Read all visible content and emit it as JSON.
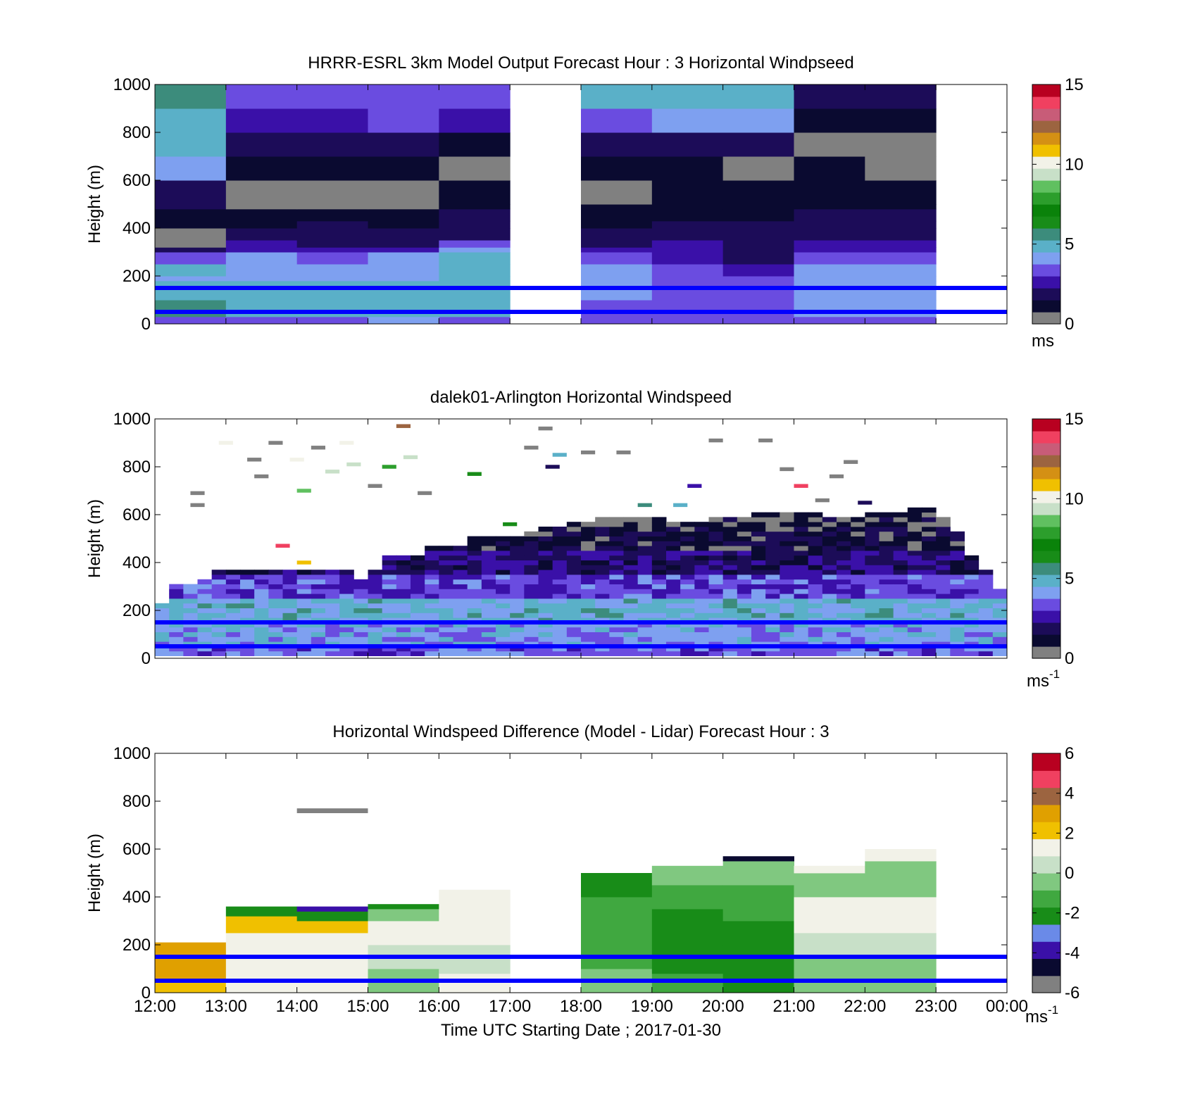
{
  "colors": {
    "ref_line": "#0000ff",
    "grey": "#808080",
    "speed_palette": [
      "#808080",
      "#0a0a30",
      "#1c0c58",
      "#3a10a8",
      "#6a4ce0",
      "#7ea0f0",
      "#5ab0c8",
      "#3c8c7c",
      "#188c18",
      "#0a820a",
      "#2c9e2c",
      "#60c060",
      "#c8e0c8",
      "#f2f2e8",
      "#f0c000",
      "#d49014",
      "#9c6440",
      "#c85c78",
      "#f04060",
      "#b80020"
    ],
    "diff_palette": [
      "#808080",
      "#0a0a30",
      "#3a10a8",
      "#6a8ae8",
      "#188c18",
      "#40a840",
      "#80c880",
      "#c8e0c8",
      "#f2f2e8",
      "#f0c000",
      "#e0a000",
      "#9c6440",
      "#f04060",
      "#b80020"
    ]
  },
  "chart_data": [
    {
      "type": "heatmap",
      "title": "HRRR-ESRL 3km Model Output   Forecast Hour : 3 Horizontal Windpseed",
      "ylabel": "Height (m)",
      "ylim": [
        0,
        1000
      ],
      "yticks": [
        "0",
        "200",
        "400",
        "600",
        "800",
        "1000"
      ],
      "xlim_hours": [
        12,
        24
      ],
      "ref_lines_m": [
        50,
        150
      ],
      "colorbar": {
        "min": 0,
        "max": 15,
        "ticks": [
          "0",
          "5",
          "10",
          "15"
        ],
        "unit": "ms"
      },
      "x_hours": [
        12,
        13,
        14,
        15,
        16,
        18,
        19,
        20,
        21,
        22
      ],
      "y_bin_top_m": [
        30,
        60,
        100,
        130,
        180,
        200,
        250,
        300,
        320,
        350,
        400,
        430,
        480,
        500,
        600,
        700,
        800,
        900,
        1000
      ],
      "values": [
        [
          3.3,
          3.7,
          3.5,
          3.8,
          3.6,
          3.7,
          3.3,
          3.2,
          3.7,
          3.6
        ],
        [
          5.4,
          4.8,
          5.0,
          4.9,
          5.2,
          3.3,
          3.5,
          3.3,
          4.0,
          4.3
        ],
        [
          5.8,
          5.0,
          4.8,
          5.0,
          5.2,
          3.4,
          3.7,
          3.6,
          3.9,
          4.2
        ],
        [
          5.2,
          5.0,
          5.0,
          5.0,
          5.2,
          3.8,
          3.5,
          3.6,
          3.9,
          4.2
        ],
        [
          4.8,
          5.0,
          5.0,
          5.0,
          5.2,
          3.8,
          3.5,
          3.5,
          3.9,
          4.2
        ],
        [
          4.4,
          4.4,
          4.4,
          4.3,
          5.0,
          3.9,
          3.3,
          3.1,
          3.8,
          4.3
        ],
        [
          4.5,
          4.3,
          4.2,
          4.4,
          4.8,
          4.0,
          3.2,
          2.8,
          3.8,
          4.3
        ],
        [
          3.1,
          4.0,
          3.3,
          4.0,
          4.6,
          3.0,
          2.7,
          2.2,
          3.2,
          3.7
        ],
        [
          1.6,
          2.7,
          2.5,
          2.4,
          4.3,
          2.8,
          2.6,
          2.2,
          2.6,
          2.8
        ],
        [
          0.5,
          2.3,
          2.2,
          2.0,
          3.7,
          2.2,
          2.4,
          1.8,
          2.3,
          2.4
        ],
        [
          0.0,
          2.0,
          1.8,
          1.8,
          2.2,
          2.0,
          2.0,
          1.8,
          2.0,
          2.0
        ],
        [
          1.3,
          1.4,
          1.6,
          1.2,
          1.8,
          1.4,
          1.5,
          1.5,
          1.6,
          1.6
        ],
        [
          1.4,
          1.0,
          1.0,
          0.9,
          1.5,
          1.1,
          1.3,
          1.3,
          1.6,
          1.6
        ],
        [
          1.6,
          0.5,
          0.6,
          0.5,
          1.4,
          1.0,
          1.2,
          1.1,
          1.4,
          1.2
        ],
        [
          1.8,
          0.7,
          0.7,
          0.4,
          1.1,
          0.7,
          0.8,
          0.8,
          1.0,
          1.1
        ],
        [
          4.0,
          0.9,
          0.9,
          1.0,
          0.6,
          0.8,
          0.8,
          0.6,
          0.8,
          0.6
        ],
        [
          5.0,
          1.9,
          1.8,
          1.9,
          1.4,
          1.9,
          1.9,
          1.9,
          0.6,
          0.5
        ],
        [
          5.2,
          2.8,
          2.8,
          3.5,
          2.6,
          3.5,
          3.8,
          4.2,
          1.0,
          0.9
        ],
        [
          5.6,
          3.6,
          3.4,
          3.6,
          3.2,
          4.6,
          5.0,
          5.0,
          2.1,
          2.1
        ]
      ]
    },
    {
      "type": "heatmap",
      "title": "dalek01-Arlington  Horizontal Windspeed",
      "ylabel": "Height (m)",
      "ylim": [
        0,
        1000
      ],
      "yticks": [
        "0",
        "200",
        "400",
        "600",
        "800",
        "1000"
      ],
      "xlim_hours": [
        12,
        24
      ],
      "ref_lines_m": [
        50,
        150
      ],
      "colorbar": {
        "min": 0,
        "max": 15,
        "ticks": [
          "0",
          "5",
          "10",
          "15"
        ],
        "unit": "ms",
        "unit_sup": "-1"
      },
      "profile_step_hours": 0.2,
      "profile_top_m": [
        220,
        300,
        300,
        330,
        370,
        360,
        360,
        360,
        370,
        360,
        360,
        360,
        370,
        370,
        330,
        360,
        420,
        430,
        430,
        460,
        460,
        470,
        500,
        500,
        500,
        510,
        520,
        540,
        550,
        560,
        570,
        580,
        580,
        580,
        580,
        580,
        570,
        570,
        570,
        580,
        580,
        590,
        600,
        600,
        600,
        600,
        600,
        590,
        590,
        590,
        600,
        600,
        610,
        620,
        620,
        590,
        520,
        420,
        360,
        290
      ],
      "layer_speeds_ms": [
        {
          "top_m": 50,
          "value": 3.5
        },
        {
          "top_m": 150,
          "value": 4.1
        },
        {
          "top_m": 250,
          "value": 4.6
        },
        {
          "top_m": 350,
          "value": 3.2
        },
        {
          "top_m": 450,
          "value": 2.0
        },
        {
          "top_m": 550,
          "value": 1.3
        },
        {
          "top_m": 650,
          "value": 0.8
        }
      ],
      "sparse_returns": [
        {
          "hour": 12.5,
          "height_m": 690,
          "value": 0.0
        },
        {
          "hour": 12.5,
          "height_m": 640,
          "value": 0.0
        },
        {
          "hour": 12.9,
          "height_m": 900,
          "value": 10.2
        },
        {
          "hour": 13.3,
          "height_m": 830,
          "value": 0.0
        },
        {
          "hour": 13.4,
          "height_m": 760,
          "value": 0.0
        },
        {
          "hour": 13.6,
          "height_m": 900,
          "value": 0.0
        },
        {
          "hour": 13.7,
          "height_m": 470,
          "value": 13.8
        },
        {
          "hour": 13.9,
          "height_m": 830,
          "value": 10.2
        },
        {
          "hour": 14.0,
          "height_m": 700,
          "value": 8.6
        },
        {
          "hour": 14.0,
          "height_m": 400,
          "value": 11.2
        },
        {
          "hour": 14.2,
          "height_m": 880,
          "value": 0.0
        },
        {
          "hour": 14.4,
          "height_m": 780,
          "value": 9.4
        },
        {
          "hour": 14.6,
          "height_m": 900,
          "value": 10.1
        },
        {
          "hour": 14.7,
          "height_m": 810,
          "value": 9.0
        },
        {
          "hour": 15.0,
          "height_m": 720,
          "value": 0.0
        },
        {
          "hour": 15.2,
          "height_m": 800,
          "value": 7.6
        },
        {
          "hour": 15.4,
          "height_m": 970,
          "value": 12.1
        },
        {
          "hour": 15.5,
          "height_m": 840,
          "value": 9.0
        },
        {
          "hour": 15.7,
          "height_m": 690,
          "value": 0.0
        },
        {
          "hour": 16.4,
          "height_m": 770,
          "value": 6.5
        },
        {
          "hour": 16.9,
          "height_m": 560,
          "value": 6.0
        },
        {
          "hour": 17.2,
          "height_m": 880,
          "value": 0.0
        },
        {
          "hour": 17.4,
          "height_m": 960,
          "value": 0.0
        },
        {
          "hour": 17.5,
          "height_m": 800,
          "value": 1.9
        },
        {
          "hour": 17.6,
          "height_m": 850,
          "value": 4.8
        },
        {
          "hour": 18.0,
          "height_m": 860,
          "value": 0.0
        },
        {
          "hour": 18.5,
          "height_m": 860,
          "value": 0.0
        },
        {
          "hour": 18.8,
          "height_m": 640,
          "value": 5.6
        },
        {
          "hour": 19.3,
          "height_m": 640,
          "value": 4.9
        },
        {
          "hour": 19.5,
          "height_m": 720,
          "value": 2.7
        },
        {
          "hour": 19.8,
          "height_m": 910,
          "value": 0.0
        },
        {
          "hour": 20.5,
          "height_m": 910,
          "value": 0.0
        },
        {
          "hour": 20.8,
          "height_m": 790,
          "value": 0.0
        },
        {
          "hour": 21.0,
          "height_m": 720,
          "value": 14.0
        },
        {
          "hour": 21.3,
          "height_m": 660,
          "value": 0.0
        },
        {
          "hour": 21.5,
          "height_m": 760,
          "value": 0.0
        },
        {
          "hour": 21.7,
          "height_m": 820,
          "value": 0.0
        },
        {
          "hour": 21.9,
          "height_m": 650,
          "value": 1.9
        }
      ]
    },
    {
      "type": "heatmap",
      "title": "Horizontal Windspeed Difference (Model - Lidar) Forecast Hour : 3",
      "xlabel": "Time UTC  Starting Date ; 2017-01-30",
      "ylabel": "Height (m)",
      "ylim": [
        0,
        1000
      ],
      "yticks": [
        "0",
        "200",
        "400",
        "600",
        "800",
        "1000"
      ],
      "xlim_hours": [
        12,
        24
      ],
      "xticks": [
        "12:00",
        "13:00",
        "14:00",
        "15:00",
        "16:00",
        "17:00",
        "18:00",
        "19:00",
        "20:00",
        "21:00",
        "22:00",
        "23:00",
        "00:00"
      ],
      "ref_lines_m": [
        50,
        150
      ],
      "colorbar": {
        "min": -6,
        "max": 6,
        "ticks": [
          "-6",
          "-4",
          "-2",
          "0",
          "2",
          "4",
          "6"
        ],
        "unit": "ms",
        "unit_sup": "-1"
      },
      "columns": [
        {
          "hour": 12,
          "top_m": 210,
          "bands": [
            {
              "top_m": 50,
              "value": 2.4
            },
            {
              "top_m": 130,
              "value": 2.9
            },
            {
              "top_m": 210,
              "value": 3.0
            }
          ]
        },
        {
          "hour": 13,
          "top_m": 360,
          "bands": [
            {
              "top_m": 150,
              "value": 1.1
            },
            {
              "top_m": 250,
              "value": 1.6
            },
            {
              "top_m": 320,
              "value": 2.0
            },
            {
              "top_m": 360,
              "value": -2.3
            }
          ]
        },
        {
          "hour": 14,
          "top_m": 360,
          "bands": [
            {
              "top_m": 150,
              "value": 1.1
            },
            {
              "top_m": 250,
              "value": 1.7
            },
            {
              "top_m": 300,
              "value": 2.1
            },
            {
              "top_m": 340,
              "value": -1.8
            },
            {
              "top_m": 360,
              "value": -3.8
            }
          ]
        },
        {
          "hour": 15,
          "top_m": 370,
          "bands": [
            {
              "top_m": 100,
              "value": -0.7
            },
            {
              "top_m": 200,
              "value": 0.6
            },
            {
              "top_m": 300,
              "value": 0.9
            },
            {
              "top_m": 350,
              "value": -0.8
            },
            {
              "top_m": 370,
              "value": -2.0
            }
          ]
        },
        {
          "hour": 16,
          "top_m": 430,
          "bands": [
            {
              "top_m": 80,
              "value": 0.9
            },
            {
              "top_m": 200,
              "value": 0.3
            },
            {
              "top_m": 320,
              "value": 1.1
            },
            {
              "top_m": 430,
              "value": 1.6
            }
          ]
        },
        {
          "hour": 18,
          "top_m": 500,
          "bands": [
            {
              "top_m": 100,
              "value": -0.8
            },
            {
              "top_m": 250,
              "value": -1.4
            },
            {
              "top_m": 400,
              "value": -1.1
            },
            {
              "top_m": 500,
              "value": -2.4
            }
          ]
        },
        {
          "hour": 19,
          "top_m": 530,
          "bands": [
            {
              "top_m": 80,
              "value": -1.0
            },
            {
              "top_m": 200,
              "value": -2.2
            },
            {
              "top_m": 350,
              "value": -1.8
            },
            {
              "top_m": 450,
              "value": -1.0
            },
            {
              "top_m": 530,
              "value": -0.3
            }
          ]
        },
        {
          "hour": 20,
          "top_m": 570,
          "bands": [
            {
              "top_m": 150,
              "value": -2.3
            },
            {
              "top_m": 300,
              "value": -2.0
            },
            {
              "top_m": 450,
              "value": -0.9
            },
            {
              "top_m": 550,
              "value": -0.4
            },
            {
              "top_m": 570,
              "value": -4.7
            }
          ]
        },
        {
          "hour": 21,
          "top_m": 530,
          "bands": [
            {
              "top_m": 150,
              "value": -0.6
            },
            {
              "top_m": 250,
              "value": 0.2
            },
            {
              "top_m": 400,
              "value": 1.2
            },
            {
              "top_m": 500,
              "value": -0.5
            },
            {
              "top_m": 530,
              "value": 1.0
            }
          ]
        },
        {
          "hour": 22,
          "top_m": 600,
          "bands": [
            {
              "top_m": 150,
              "value": -0.8
            },
            {
              "top_m": 250,
              "value": 0.6
            },
            {
              "top_m": 400,
              "value": 1.3
            },
            {
              "top_m": 550,
              "value": -0.2
            },
            {
              "top_m": 600,
              "value": 1.0
            }
          ]
        }
      ],
      "patches": [
        {
          "hour_start": 14,
          "hour_end": 15,
          "bottom_m": 750,
          "top_m": 770,
          "value": -5.6
        }
      ]
    }
  ]
}
